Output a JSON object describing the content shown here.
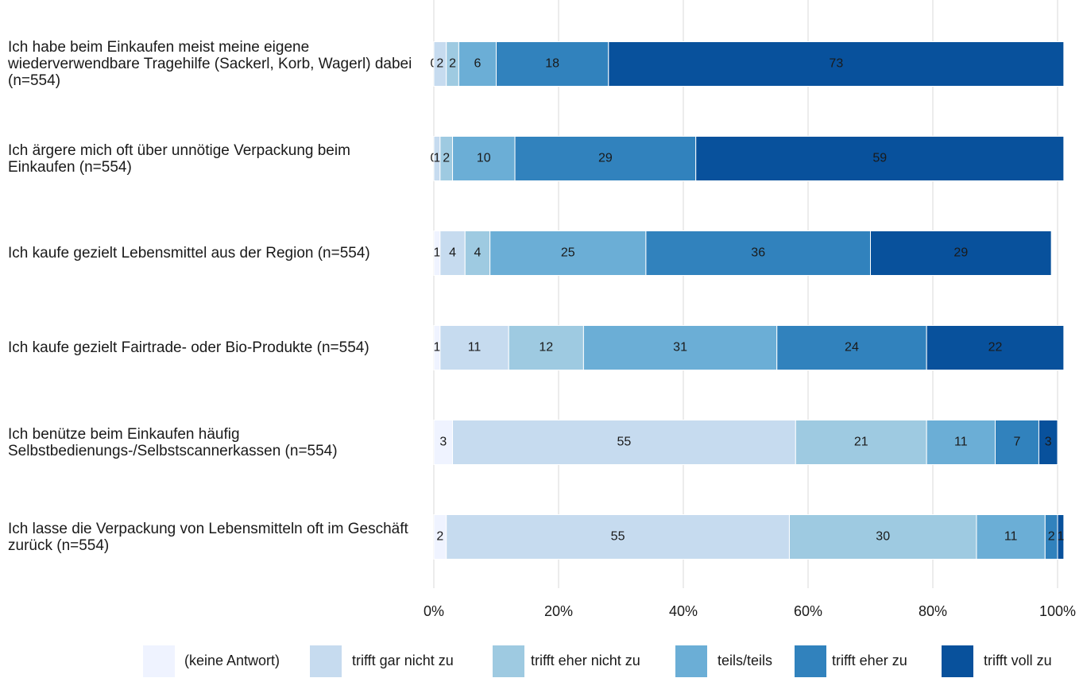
{
  "chart_data": {
    "type": "stacked-barh",
    "categories": [
      "Ich habe beim Einkaufen meist meine eigene wiederverwendbare Tragehilfe (Sackerl, Korb, Wagerl) dabei (n=554)",
      "Ich ärgere mich oft über unnötige Verpackung beim Einkaufen (n=554)",
      "Ich kaufe gezielt Lebensmittel aus der Region (n=554)",
      "Ich kaufe gezielt Fairtrade- oder Bio-Produkte (n=554)",
      "Ich benütze beim Einkaufen häufig Selbstbedienungs-/Selbstscannerkassen (n=554)",
      "Ich lasse die Verpackung von Lebensmitteln oft im Geschäft zurück (n=554)"
    ],
    "series": [
      {
        "name": "(keine Antwort)",
        "color": "#eff3ff",
        "values": [
          0,
          0,
          1,
          1,
          3,
          2
        ]
      },
      {
        "name": "trifft gar nicht zu",
        "color": "#c6dbef",
        "values": [
          2,
          1,
          4,
          11,
          55,
          55
        ]
      },
      {
        "name": "trifft eher nicht zu",
        "color": "#9ecae1",
        "values": [
          2,
          2,
          4,
          12,
          21,
          30
        ]
      },
      {
        "name": "teils/teils",
        "color": "#6baed6",
        "values": [
          6,
          10,
          25,
          31,
          11,
          11
        ]
      },
      {
        "name": "trifft eher zu",
        "color": "#3182bd",
        "values": [
          18,
          29,
          36,
          24,
          7,
          2
        ]
      },
      {
        "name": "trifft voll zu",
        "color": "#08519c",
        "values": [
          73,
          59,
          29,
          22,
          3,
          1
        ]
      }
    ],
    "xlim": [
      0,
      100
    ],
    "xticks": [
      {
        "value": 0,
        "label": "0%"
      },
      {
        "value": 20,
        "label": "20%"
      },
      {
        "value": 40,
        "label": "40%"
      },
      {
        "value": 60,
        "label": "60%"
      },
      {
        "value": 80,
        "label": "80%"
      },
      {
        "value": 100,
        "label": "100%"
      }
    ],
    "grid": true,
    "legend": "bottom"
  }
}
